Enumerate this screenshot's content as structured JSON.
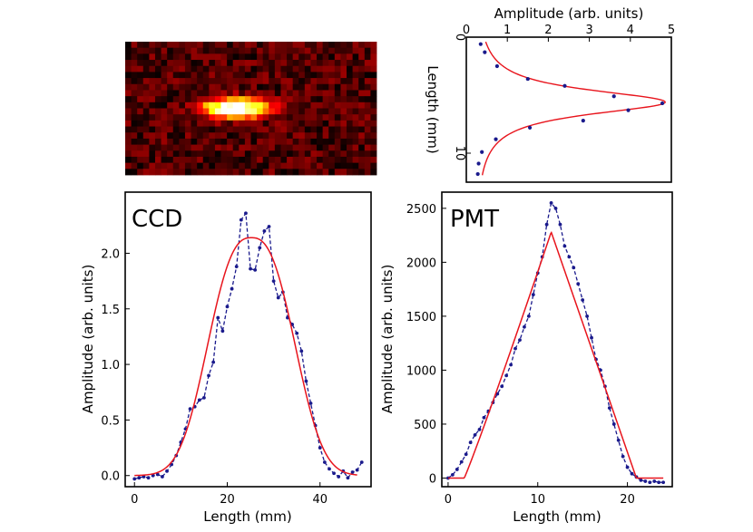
{
  "chart_data": [
    {
      "id": "ccd-image",
      "type": "heatmap",
      "title": "",
      "colormap": "hot",
      "description_values": {
        "rows": 22,
        "cols": 42
      }
    },
    {
      "id": "profile",
      "type": "scatter",
      "title": "",
      "xlabel": "Amplitude (arb. units)",
      "ylabel": "Length (mm)",
      "xlim": [
        0,
        5
      ],
      "ylim": [
        0,
        12.5
      ],
      "y_inverted": true,
      "x_ticks": [
        "0",
        "1",
        "2",
        "3",
        "4",
        "5"
      ],
      "y_ticks": [
        "0",
        "10"
      ],
      "y_tick_values": [
        0,
        10
      ],
      "series": [
        {
          "name": "data",
          "style": "points",
          "color": "#1a1a8c",
          "x": [
            0.35,
            0.45,
            0.75,
            1.5,
            2.4,
            3.6,
            4.78,
            3.95,
            2.85,
            1.55,
            0.72,
            0.38,
            0.3,
            0.28
          ],
          "y": [
            0.6,
            1.3,
            2.5,
            3.6,
            4.2,
            5.1,
            5.7,
            6.3,
            7.2,
            7.8,
            8.8,
            9.9,
            10.9,
            11.8
          ]
        },
        {
          "name": "fit",
          "style": "line",
          "color": "#e8141c",
          "fit": {
            "type": "lorentzian",
            "amp": 4.65,
            "center": 5.6,
            "gamma": 1.3,
            "offset": 0.2
          }
        }
      ]
    },
    {
      "id": "ccd",
      "type": "line",
      "title": "CCD",
      "xlabel": "Length (mm)",
      "ylabel": "Amplitude (arb. units)",
      "xlim": [
        -2,
        51
      ],
      "ylim": [
        -0.1,
        2.55
      ],
      "x_ticks": [
        "0",
        "20",
        "40"
      ],
      "x_tick_values": [
        0,
        20,
        40
      ],
      "y_ticks": [
        "0.0",
        "0.5",
        "1.0",
        "1.5",
        "2.0"
      ],
      "y_tick_values": [
        0,
        0.5,
        1,
        1.5,
        2
      ],
      "series": [
        {
          "name": "data",
          "style": "dashed-points",
          "color": "#1a1a8c",
          "x": [
            0,
            1,
            2,
            3,
            4,
            5,
            6,
            7,
            8,
            9,
            10,
            11,
            12,
            13,
            14,
            15,
            16,
            17,
            18,
            19,
            20,
            21,
            22,
            23,
            24,
            25,
            26,
            27,
            28,
            29,
            30,
            31,
            32,
            33,
            34,
            35,
            36,
            37,
            38,
            39,
            40,
            41,
            42,
            43,
            44,
            45,
            46,
            47,
            48,
            49
          ],
          "y": [
            -0.03,
            -0.02,
            -0.01,
            -0.02,
            0.0,
            0.01,
            -0.01,
            0.04,
            0.1,
            0.18,
            0.3,
            0.42,
            0.6,
            0.62,
            0.68,
            0.7,
            0.9,
            1.02,
            1.42,
            1.3,
            1.52,
            1.68,
            1.88,
            2.3,
            2.36,
            1.86,
            1.85,
            2.05,
            2.2,
            2.24,
            1.75,
            1.6,
            1.65,
            1.42,
            1.36,
            1.28,
            1.12,
            0.85,
            0.65,
            0.45,
            0.25,
            0.12,
            0.06,
            0.02,
            -0.01,
            0.04,
            -0.02,
            0.03,
            0.05,
            0.12
          ]
        },
        {
          "name": "fit",
          "style": "line",
          "color": "#e8141c",
          "fit": {
            "type": "flat-gaussian",
            "amp": 2.14,
            "center": 25.2,
            "sigma": 8.8,
            "p": 2.6,
            "offset": 0.0
          }
        }
      ]
    },
    {
      "id": "pmt",
      "type": "line",
      "title": "PMT",
      "xlabel": "Length (mm)",
      "ylabel": "Amplitude (arb. units)",
      "xlim": [
        -0.7,
        25
      ],
      "ylim": [
        -80,
        2650
      ],
      "x_ticks": [
        "0",
        "10",
        "20"
      ],
      "x_tick_values": [
        0,
        10,
        20
      ],
      "y_ticks": [
        "0",
        "500",
        "1000",
        "1500",
        "2000",
        "2500"
      ],
      "y_tick_values": [
        0,
        500,
        1000,
        1500,
        2000,
        2500
      ],
      "series": [
        {
          "name": "data",
          "style": "dashed-points",
          "color": "#1a1a8c",
          "x": [
            0,
            0.5,
            1,
            1.5,
            2,
            2.5,
            3,
            3.5,
            4,
            4.5,
            5,
            5.5,
            6,
            6.5,
            7,
            7.5,
            8,
            8.5,
            9,
            9.5,
            10,
            10.5,
            11,
            11.5,
            12,
            12.5,
            13,
            13.5,
            14,
            14.5,
            15,
            15.5,
            16,
            16.5,
            17,
            17.5,
            18,
            18.5,
            19,
            19.5,
            20,
            20.5,
            21,
            21.5,
            22,
            22.5,
            23,
            23.5,
            24
          ],
          "y": [
            0,
            30,
            80,
            150,
            220,
            330,
            400,
            450,
            560,
            620,
            700,
            780,
            850,
            950,
            1050,
            1200,
            1280,
            1400,
            1500,
            1700,
            1900,
            2050,
            2350,
            2550,
            2500,
            2350,
            2150,
            2050,
            1950,
            1800,
            1650,
            1500,
            1300,
            1100,
            1000,
            850,
            650,
            500,
            350,
            200,
            100,
            40,
            10,
            -20,
            -30,
            -40,
            -30,
            -40,
            -40
          ]
        },
        {
          "name": "fit",
          "style": "line",
          "color": "#e8141c",
          "fit": {
            "type": "triangle",
            "amp": 2280,
            "start": 1.8,
            "peak": 11.5,
            "end": 21.0
          }
        }
      ]
    }
  ]
}
